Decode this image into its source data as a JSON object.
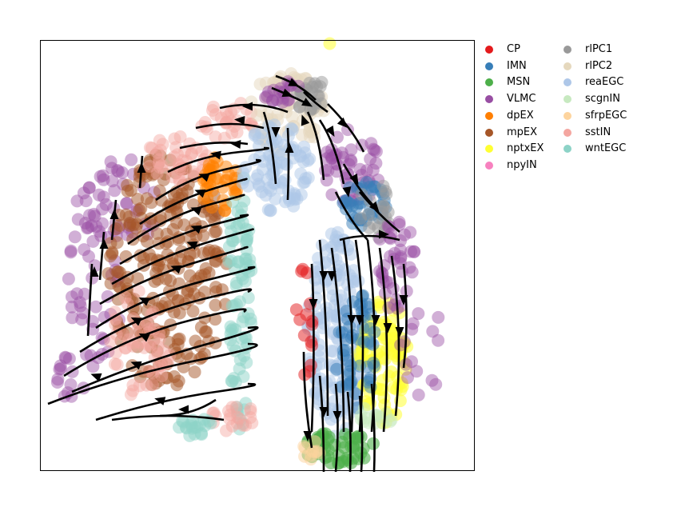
{
  "chart_data": {
    "type": "scatter",
    "title": "",
    "xlabel": "",
    "ylabel": "",
    "axes_ticks": false,
    "grid": false,
    "legend_placement": "right, outside plot, two columns",
    "overlay": "velocity streamlines (black arrows)",
    "series": [
      {
        "name": "CP",
        "color": "#e41a1c"
      },
      {
        "name": "IMN",
        "color": "#377eb8"
      },
      {
        "name": "MSN",
        "color": "#4daf4a"
      },
      {
        "name": "VLMC",
        "color": "#984ea3"
      },
      {
        "name": "dpEX",
        "color": "#ff7f00"
      },
      {
        "name": "mpEX",
        "color": "#a65628"
      },
      {
        "name": "nptxEX",
        "color": "#ffff33"
      },
      {
        "name": "npyIN",
        "color": "#f781bf"
      },
      {
        "name": "rlPC1",
        "color": "#999999"
      },
      {
        "name": "rlPC2",
        "color": "#e5d8bd"
      },
      {
        "name": "reaEGC",
        "color": "#aec7e8"
      },
      {
        "name": "scgnIN",
        "color": "#c7e9c0"
      },
      {
        "name": "sfrpEGC",
        "color": "#fdd49e"
      },
      {
        "name": "sstIN",
        "color": "#f4a6a0"
      },
      {
        "name": "wntEGC",
        "color": "#8dd3c7"
      }
    ]
  }
}
